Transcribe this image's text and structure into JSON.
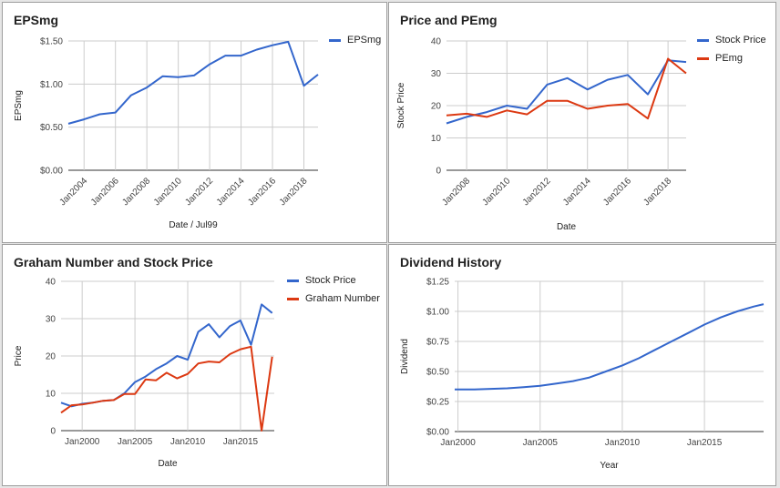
{
  "chart_data": [
    {
      "type": "line",
      "title": "EPSmg",
      "xlabel": "Date / Jul99",
      "ylabel": "EPSmg",
      "x_ticks": [
        "Jan2004",
        "Jan2006",
        "Jan2008",
        "Jan2010",
        "Jan2012",
        "Jan2014",
        "Jan2016",
        "Jan2018"
      ],
      "y_ticks": [
        "$0.00",
        "$0.50",
        "$1.00",
        "$1.50"
      ],
      "xlim": [
        2003.0,
        2018.9
      ],
      "ylim": [
        0,
        1.5
      ],
      "series": [
        {
          "name": "EPSmg",
          "color": "#3366cc",
          "x": [
            2003.0,
            2004.0,
            2005.0,
            2006.0,
            2007.0,
            2008.0,
            2009.0,
            2010.0,
            2011.0,
            2012.0,
            2013.0,
            2014.0,
            2015.0,
            2016.0,
            2017.0,
            2018.0,
            2018.9
          ],
          "y": [
            0.54,
            0.59,
            0.65,
            0.67,
            0.87,
            0.96,
            1.09,
            1.08,
            1.1,
            1.23,
            1.33,
            1.33,
            1.4,
            1.45,
            1.49,
            0.98,
            1.11
          ]
        }
      ],
      "grid": true,
      "legend": "top-right"
    },
    {
      "type": "line",
      "title": "Price and PEmg",
      "xlabel": "Date",
      "ylabel": "Stock Price",
      "x_ticks": [
        "Jan2008",
        "Jan2010",
        "Jan2012",
        "Jan2014",
        "Jan2016",
        "Jan2018"
      ],
      "y_ticks": [
        "0",
        "10",
        "20",
        "30",
        "40"
      ],
      "xlim": [
        2007.0,
        2018.9
      ],
      "ylim": [
        0,
        40
      ],
      "series": [
        {
          "name": "Stock Price",
          "color": "#3366cc",
          "x": [
            2007.0,
            2008.0,
            2009.0,
            2010.0,
            2011.0,
            2012.0,
            2013.0,
            2014.0,
            2015.0,
            2016.0,
            2017.0,
            2018.0,
            2018.9
          ],
          "y": [
            14.5,
            16.5,
            18.0,
            20.0,
            19.0,
            26.5,
            28.5,
            25.0,
            28.0,
            29.5,
            23.5,
            34.0,
            33.5
          ]
        },
        {
          "name": "PEmg",
          "color": "#dc3912",
          "x": [
            2007.0,
            2008.0,
            2009.0,
            2010.0,
            2011.0,
            2012.0,
            2013.0,
            2014.0,
            2015.0,
            2016.0,
            2017.0,
            2018.0,
            2018.9
          ],
          "y": [
            17.0,
            17.5,
            16.5,
            18.5,
            17.3,
            21.5,
            21.5,
            19.0,
            20.0,
            20.5,
            16.0,
            34.5,
            30.0
          ]
        }
      ],
      "grid": true,
      "legend": "top-right"
    },
    {
      "type": "line",
      "title": "Graham Number and Stock Price",
      "xlabel": "Date",
      "ylabel": "Price",
      "x_ticks": [
        "Jan2000",
        "Jan2005",
        "Jan2010",
        "Jan2015"
      ],
      "y_ticks": [
        "0",
        "10",
        "20",
        "30",
        "40"
      ],
      "xlim": [
        1998.0,
        2018.2
      ],
      "ylim": [
        0,
        40
      ],
      "series": [
        {
          "name": "Stock Price",
          "color": "#3366cc",
          "x": [
            1998.0,
            1999.0,
            2000.0,
            2001.0,
            2002.0,
            2003.0,
            2004.0,
            2005.0,
            2006.0,
            2007.0,
            2008.0,
            2009.0,
            2010.0,
            2011.0,
            2012.0,
            2013.0,
            2014.0,
            2015.0,
            2016.0,
            2017.0,
            2018.0
          ],
          "y": [
            7.5,
            6.5,
            7.2,
            7.5,
            8.0,
            8.2,
            10.0,
            13.0,
            14.5,
            16.5,
            18.0,
            20.0,
            19.0,
            26.5,
            28.5,
            25.0,
            28.0,
            29.5,
            23.0,
            33.8,
            31.5
          ]
        },
        {
          "name": "Graham Number",
          "color": "#dc3912",
          "x": [
            1998.0,
            1999.0,
            2000.0,
            2001.0,
            2002.0,
            2003.0,
            2004.0,
            2005.0,
            2006.0,
            2007.0,
            2008.0,
            2009.0,
            2010.0,
            2011.0,
            2012.0,
            2013.0,
            2014.0,
            2015.0,
            2016.0,
            2017.0,
            2018.0
          ],
          "y": [
            4.8,
            6.8,
            7.0,
            7.5,
            8.0,
            8.2,
            9.8,
            9.8,
            13.7,
            13.5,
            15.5,
            14.0,
            15.2,
            18.0,
            18.5,
            18.3,
            20.5,
            21.8,
            22.5,
            0.0,
            19.8
          ]
        }
      ],
      "grid": true,
      "legend": "top-right"
    },
    {
      "type": "line",
      "title": "Dividend History",
      "xlabel": "Year",
      "ylabel": "Dividend",
      "x_ticks": [
        "Jan2000",
        "Jan2005",
        "Jan2010",
        "Jan2015"
      ],
      "y_ticks": [
        "$0.00",
        "$0.25",
        "$0.50",
        "$0.75",
        "$1.00",
        "$1.25"
      ],
      "xlim": [
        1999.8,
        2018.6
      ],
      "ylim": [
        0,
        1.25
      ],
      "series": [
        {
          "name": "",
          "color": "#3366cc",
          "x": [
            1999.8,
            2000.0,
            2001.0,
            2002.0,
            2003.0,
            2004.0,
            2005.0,
            2006.0,
            2007.0,
            2008.0,
            2009.0,
            2010.0,
            2011.0,
            2012.0,
            2013.0,
            2014.0,
            2015.0,
            2016.0,
            2017.0,
            2018.0,
            2018.6
          ],
          "y": [
            0.35,
            0.35,
            0.35,
            0.355,
            0.36,
            0.37,
            0.38,
            0.4,
            0.42,
            0.45,
            0.5,
            0.55,
            0.61,
            0.68,
            0.75,
            0.82,
            0.89,
            0.95,
            1.0,
            1.04,
            1.06
          ]
        }
      ],
      "grid": true,
      "legend": "none"
    }
  ]
}
